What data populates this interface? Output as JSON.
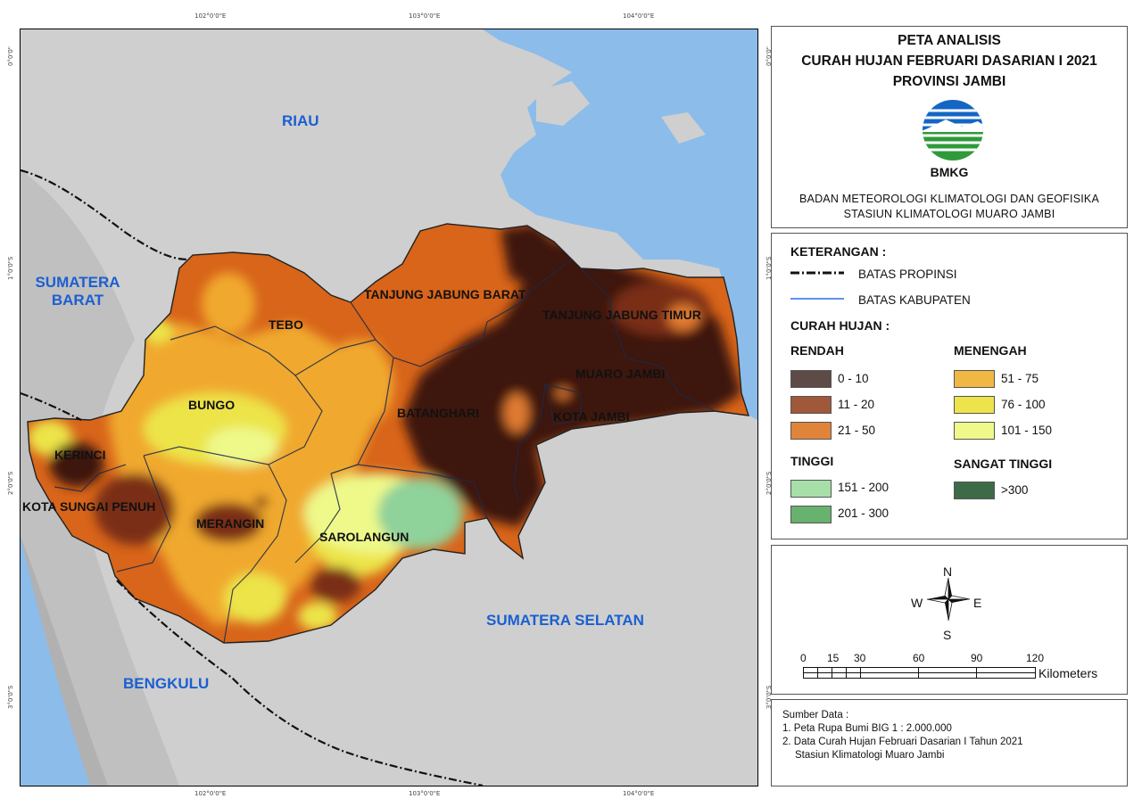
{
  "header": {
    "line1": "PETA ANALISIS",
    "line2": "CURAH HUJAN FEBRUARI DASARIAN I 2021",
    "line3": "PROVINSI JAMBI",
    "logo_text": "BMKG",
    "agency_line1": "BADAN METEOROLOGI KLIMATOLOGI DAN GEOFISIKA",
    "agency_line2": "STASIUN KLIMATOLOGI MUARO JAMBI"
  },
  "legend": {
    "title": "KETERANGAN :",
    "batas_propinsi": "BATAS PROPINSI",
    "batas_kabupaten": "BATAS KABUPATEN",
    "curah_title": "CURAH HUJAN :",
    "groups": {
      "rendah": "RENDAH",
      "menengah": "MENENGAH",
      "tinggi": "TINGGI",
      "sangat_tinggi": "SANGAT TINGGI"
    },
    "classes": [
      {
        "label": "0 - 10",
        "color": "#5e4a47"
      },
      {
        "label": "11 - 20",
        "color": "#a0583a"
      },
      {
        "label": "21 - 50",
        "color": "#e0843a"
      },
      {
        "label": "51 - 75",
        "color": "#f0b744"
      },
      {
        "label": "76 - 100",
        "color": "#ece44a"
      },
      {
        "label": "101 - 150",
        "color": "#eef98a"
      },
      {
        "label": "151 - 200",
        "color": "#a6dfa8"
      },
      {
        "label": "201 - 300",
        "color": "#67b26e"
      },
      {
        "label": ">300",
        "color": "#3d6b47"
      }
    ]
  },
  "compass": {
    "n": "N",
    "s": "S",
    "e": "E",
    "w": "W"
  },
  "scale": {
    "ticks": [
      "0",
      "15",
      "30",
      "60",
      "90",
      "120"
    ],
    "unit": "Kilometers"
  },
  "source": {
    "title": "Sumber Data :",
    "line1": "1. Peta Rupa Bumi BIG 1 : 2.000.000",
    "line2": "2. Data Curah Hujan Februari Dasarian I Tahun 2021",
    "line3": "Stasiun Klimatologi Muaro Jambi"
  },
  "map": {
    "provinces": [
      "RIAU",
      "SUMATERA BARAT",
      "SUMATERA SELATAN",
      "BENGKULU"
    ],
    "regencies": [
      "TANJUNG JABUNG BARAT",
      "TANJUNG JABUNG TIMUR",
      "TEBO",
      "BUNGO",
      "MUARO JAMBI",
      "BATANGHARI",
      "KOTA JAMBI",
      "KERINCI",
      "KOTA SUNGAI PENUH",
      "MERANGIN",
      "SAROLANGUN"
    ],
    "coords_top": [
      "102°0'0\"E",
      "103°0'0\"E",
      "104°0'0\"E"
    ],
    "coords_bottom": [
      "102°0'0\"E",
      "103°0'0\"E",
      "104°0'0\"E"
    ],
    "coords_left": [
      "0°0'0\"",
      "1°0'0\"S",
      "2°0'0\"S",
      "3°0'0\"S"
    ],
    "coords_right": [
      "0°0'0\"",
      "1°0'0\"S",
      "2°0'0\"S",
      "3°0'0\"S"
    ],
    "colors": {
      "sea": "#8cbcea",
      "land": "#cfcfcf"
    }
  }
}
